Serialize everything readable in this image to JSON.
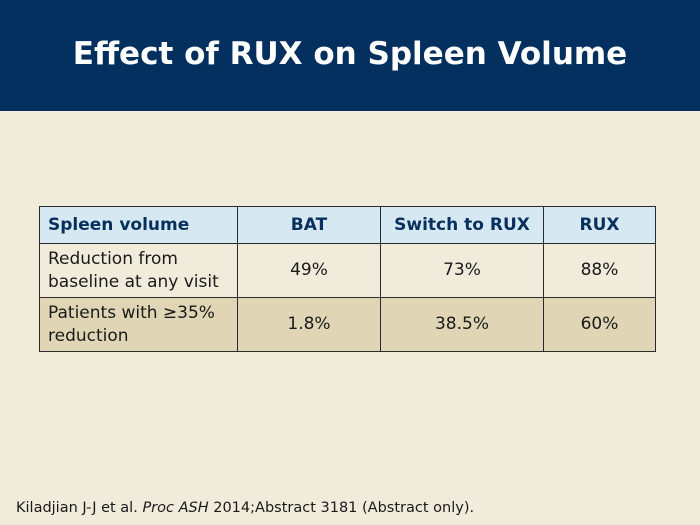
{
  "slide": {
    "title": "Effect of RUX on Spleen Volume"
  },
  "table": {
    "headers": [
      "Spleen volume",
      "BAT",
      "Switch to RUX",
      "RUX"
    ],
    "rows": [
      [
        "Reduction from baseline at any visit",
        "49%",
        "73%",
        "88%"
      ],
      [
        "Patients with ≥35% reduction",
        "1.8%",
        "38.5%",
        "60%"
      ]
    ]
  },
  "footer": {
    "authors": "Kiladjian J-J et al.",
    "journal": "Proc ASH",
    "rest": "2014;Abstract 3181 (Abstract only)."
  },
  "colors": {
    "title_bar": "#03305f",
    "background": "#f1ebdb",
    "header_row": "#d6e8f2",
    "row_alt": "#e0d6b5"
  }
}
